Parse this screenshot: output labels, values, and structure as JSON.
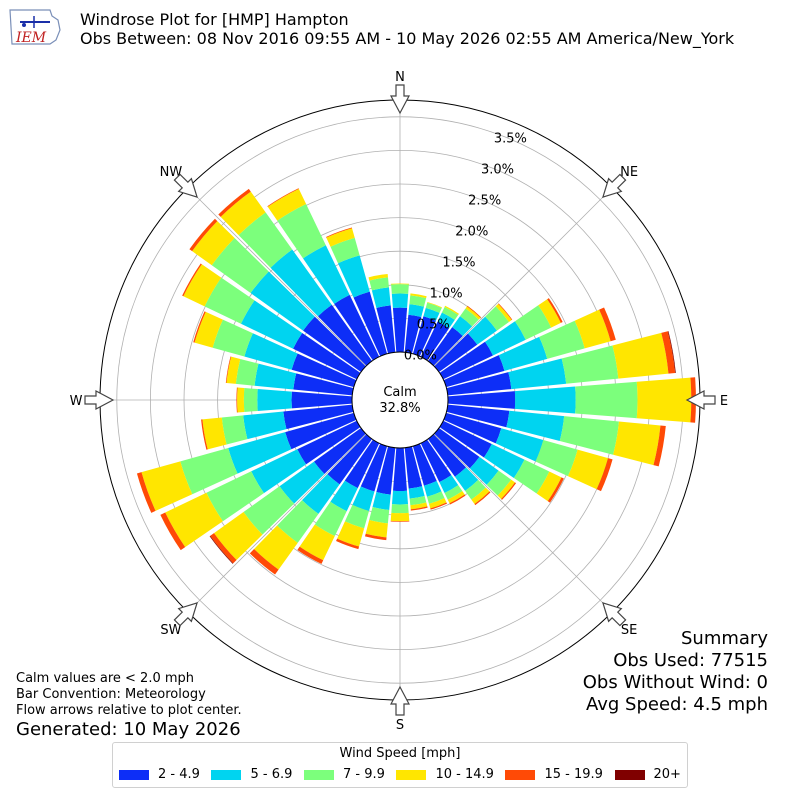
{
  "header": {
    "title_line1": "Windrose Plot for [HMP] Hampton",
    "title_line2": "Obs Between: 08 Nov 2016 09:55 AM - 10 May 2026 02:55 AM America/New_York",
    "logo_text": "IEM"
  },
  "notes": {
    "line1": "Calm values are < 2.0 mph",
    "line2": "Bar Convention: Meteorology",
    "line3": "Flow arrows relative to plot center.",
    "generated": "Generated: 10 May 2026"
  },
  "summary": {
    "heading": "Summary",
    "obs_used": "Obs Used: 77515",
    "obs_without_wind": "Obs Without Wind: 0",
    "avg_speed": "Avg Speed: 4.5 mph"
  },
  "calm": {
    "label": "Calm",
    "value": "32.8%"
  },
  "legend": {
    "title": "Wind Speed [mph]",
    "items": [
      {
        "label": "2 - 4.9",
        "color": "#0d2ef7"
      },
      {
        "label": "5 - 6.9",
        "color": "#00d4f0"
      },
      {
        "label": "7 - 9.9",
        "color": "#7cff7c"
      },
      {
        "label": "10 - 14.9",
        "color": "#ffe600"
      },
      {
        "label": "15 - 19.9",
        "color": "#ff4a06"
      },
      {
        "label": "20+",
        "color": "#800000"
      }
    ]
  },
  "chart_data": {
    "type": "windrose",
    "radial_max": 3.75,
    "radial_ticks": [
      0,
      0.5,
      1.0,
      1.5,
      2.0,
      2.5,
      3.0,
      3.5
    ],
    "radial_tick_labels": [
      "0.0%",
      "0.5%",
      "1.0%",
      "1.5%",
      "2.0%",
      "2.5%",
      "3.0%",
      "3.5%"
    ],
    "direction_labels": [
      "N",
      "NE",
      "E",
      "SE",
      "S",
      "SW",
      "W",
      "NW"
    ],
    "direction_angles": [
      0,
      45,
      90,
      135,
      180,
      225,
      270,
      315
    ],
    "bins": [
      "2 - 4.9",
      "5 - 6.9",
      "7 - 9.9",
      "10 - 14.9",
      "15 - 19.9",
      "20+"
    ],
    "sectors": [
      {
        "dir": 0,
        "values": [
          0.66,
          0.21,
          0.14,
          0.01,
          0,
          0
        ]
      },
      {
        "dir": 10,
        "values": [
          0.56,
          0.16,
          0.13,
          0.03,
          0,
          0
        ]
      },
      {
        "dir": 20,
        "values": [
          0.58,
          0.13,
          0.08,
          0.01,
          0,
          0
        ]
      },
      {
        "dir": 30,
        "values": [
          0.58,
          0.15,
          0.09,
          0.02,
          0,
          0
        ]
      },
      {
        "dir": 40,
        "values": [
          0.62,
          0.2,
          0.14,
          0.04,
          0.01,
          0
        ]
      },
      {
        "dir": 50,
        "values": [
          0.7,
          0.36,
          0.22,
          0.05,
          0.01,
          0
        ]
      },
      {
        "dir": 60,
        "values": [
          0.82,
          0.54,
          0.42,
          0.16,
          0.03,
          0
        ]
      },
      {
        "dir": 70,
        "values": [
          0.9,
          0.66,
          0.58,
          0.4,
          0.08,
          0
        ]
      },
      {
        "dir": 80,
        "values": [
          0.95,
          0.82,
          0.78,
          0.75,
          0.1,
          0.01
        ]
      },
      {
        "dir": 90,
        "values": [
          1.0,
          0.9,
          0.92,
          0.8,
          0.07,
          0
        ]
      },
      {
        "dir": 100,
        "values": [
          0.92,
          0.82,
          0.82,
          0.62,
          0.08,
          0
        ]
      },
      {
        "dir": 110,
        "values": [
          0.85,
          0.65,
          0.53,
          0.47,
          0.07,
          0
        ]
      },
      {
        "dir": 120,
        "values": [
          0.8,
          0.54,
          0.41,
          0.2,
          0.04,
          0
        ]
      },
      {
        "dir": 130,
        "values": [
          0.74,
          0.35,
          0.23,
          0.07,
          0.02,
          0
        ]
      },
      {
        "dir": 140,
        "values": [
          0.69,
          0.26,
          0.16,
          0.08,
          0.02,
          0
        ]
      },
      {
        "dir": 150,
        "values": [
          0.64,
          0.18,
          0.11,
          0.06,
          0.02,
          0
        ]
      },
      {
        "dir": 160,
        "values": [
          0.61,
          0.17,
          0.11,
          0.07,
          0.02,
          0
        ]
      },
      {
        "dir": 170,
        "values": [
          0.61,
          0.15,
          0.1,
          0.06,
          0.02,
          0
        ]
      },
      {
        "dir": 180,
        "values": [
          0.64,
          0.2,
          0.13,
          0.12,
          0.01,
          0
        ]
      },
      {
        "dir": 190,
        "values": [
          0.7,
          0.23,
          0.2,
          0.21,
          0.04,
          0
        ]
      },
      {
        "dir": 200,
        "values": [
          0.7,
          0.3,
          0.27,
          0.28,
          0.04,
          0
        ]
      },
      {
        "dir": 210,
        "values": [
          0.74,
          0.38,
          0.41,
          0.4,
          0.06,
          0
        ]
      },
      {
        "dir": 220,
        "values": [
          0.83,
          0.54,
          0.53,
          0.49,
          0.09,
          0
        ]
      },
      {
        "dir": 230,
        "values": [
          0.86,
          0.63,
          0.66,
          0.54,
          0.07,
          0.01
        ]
      },
      {
        "dir": 240,
        "values": [
          0.98,
          0.76,
          0.74,
          0.68,
          0.08,
          0
        ]
      },
      {
        "dir": 250,
        "values": [
          1.06,
          0.88,
          0.74,
          0.6,
          0.07,
          0
        ]
      },
      {
        "dir": 260,
        "values": [
          1.03,
          0.6,
          0.32,
          0.29,
          0.02,
          0
        ]
      },
      {
        "dir": 270,
        "values": [
          0.9,
          0.51,
          0.2,
          0.1,
          0.01,
          0
        ]
      },
      {
        "dir": 280,
        "values": [
          0.88,
          0.58,
          0.28,
          0.14,
          0.01,
          0
        ]
      },
      {
        "dir": 290,
        "values": [
          0.96,
          0.73,
          0.49,
          0.28,
          0.02,
          0
        ]
      },
      {
        "dir": 300,
        "values": [
          1.05,
          0.86,
          0.6,
          0.35,
          0.02,
          0
        ]
      },
      {
        "dir": 310,
        "values": [
          1.06,
          0.96,
          0.71,
          0.36,
          0.05,
          0
        ]
      },
      {
        "dir": 320,
        "values": [
          1.03,
          1.01,
          0.68,
          0.38,
          0.05,
          0
        ]
      },
      {
        "dir": 330,
        "values": [
          1.02,
          0.82,
          0.68,
          0.25,
          0.01,
          0
        ]
      },
      {
        "dir": 340,
        "values": [
          0.96,
          0.56,
          0.27,
          0.15,
          0.01,
          0
        ]
      },
      {
        "dir": 350,
        "values": [
          0.7,
          0.27,
          0.15,
          0.05,
          0,
          0
        ]
      }
    ]
  }
}
